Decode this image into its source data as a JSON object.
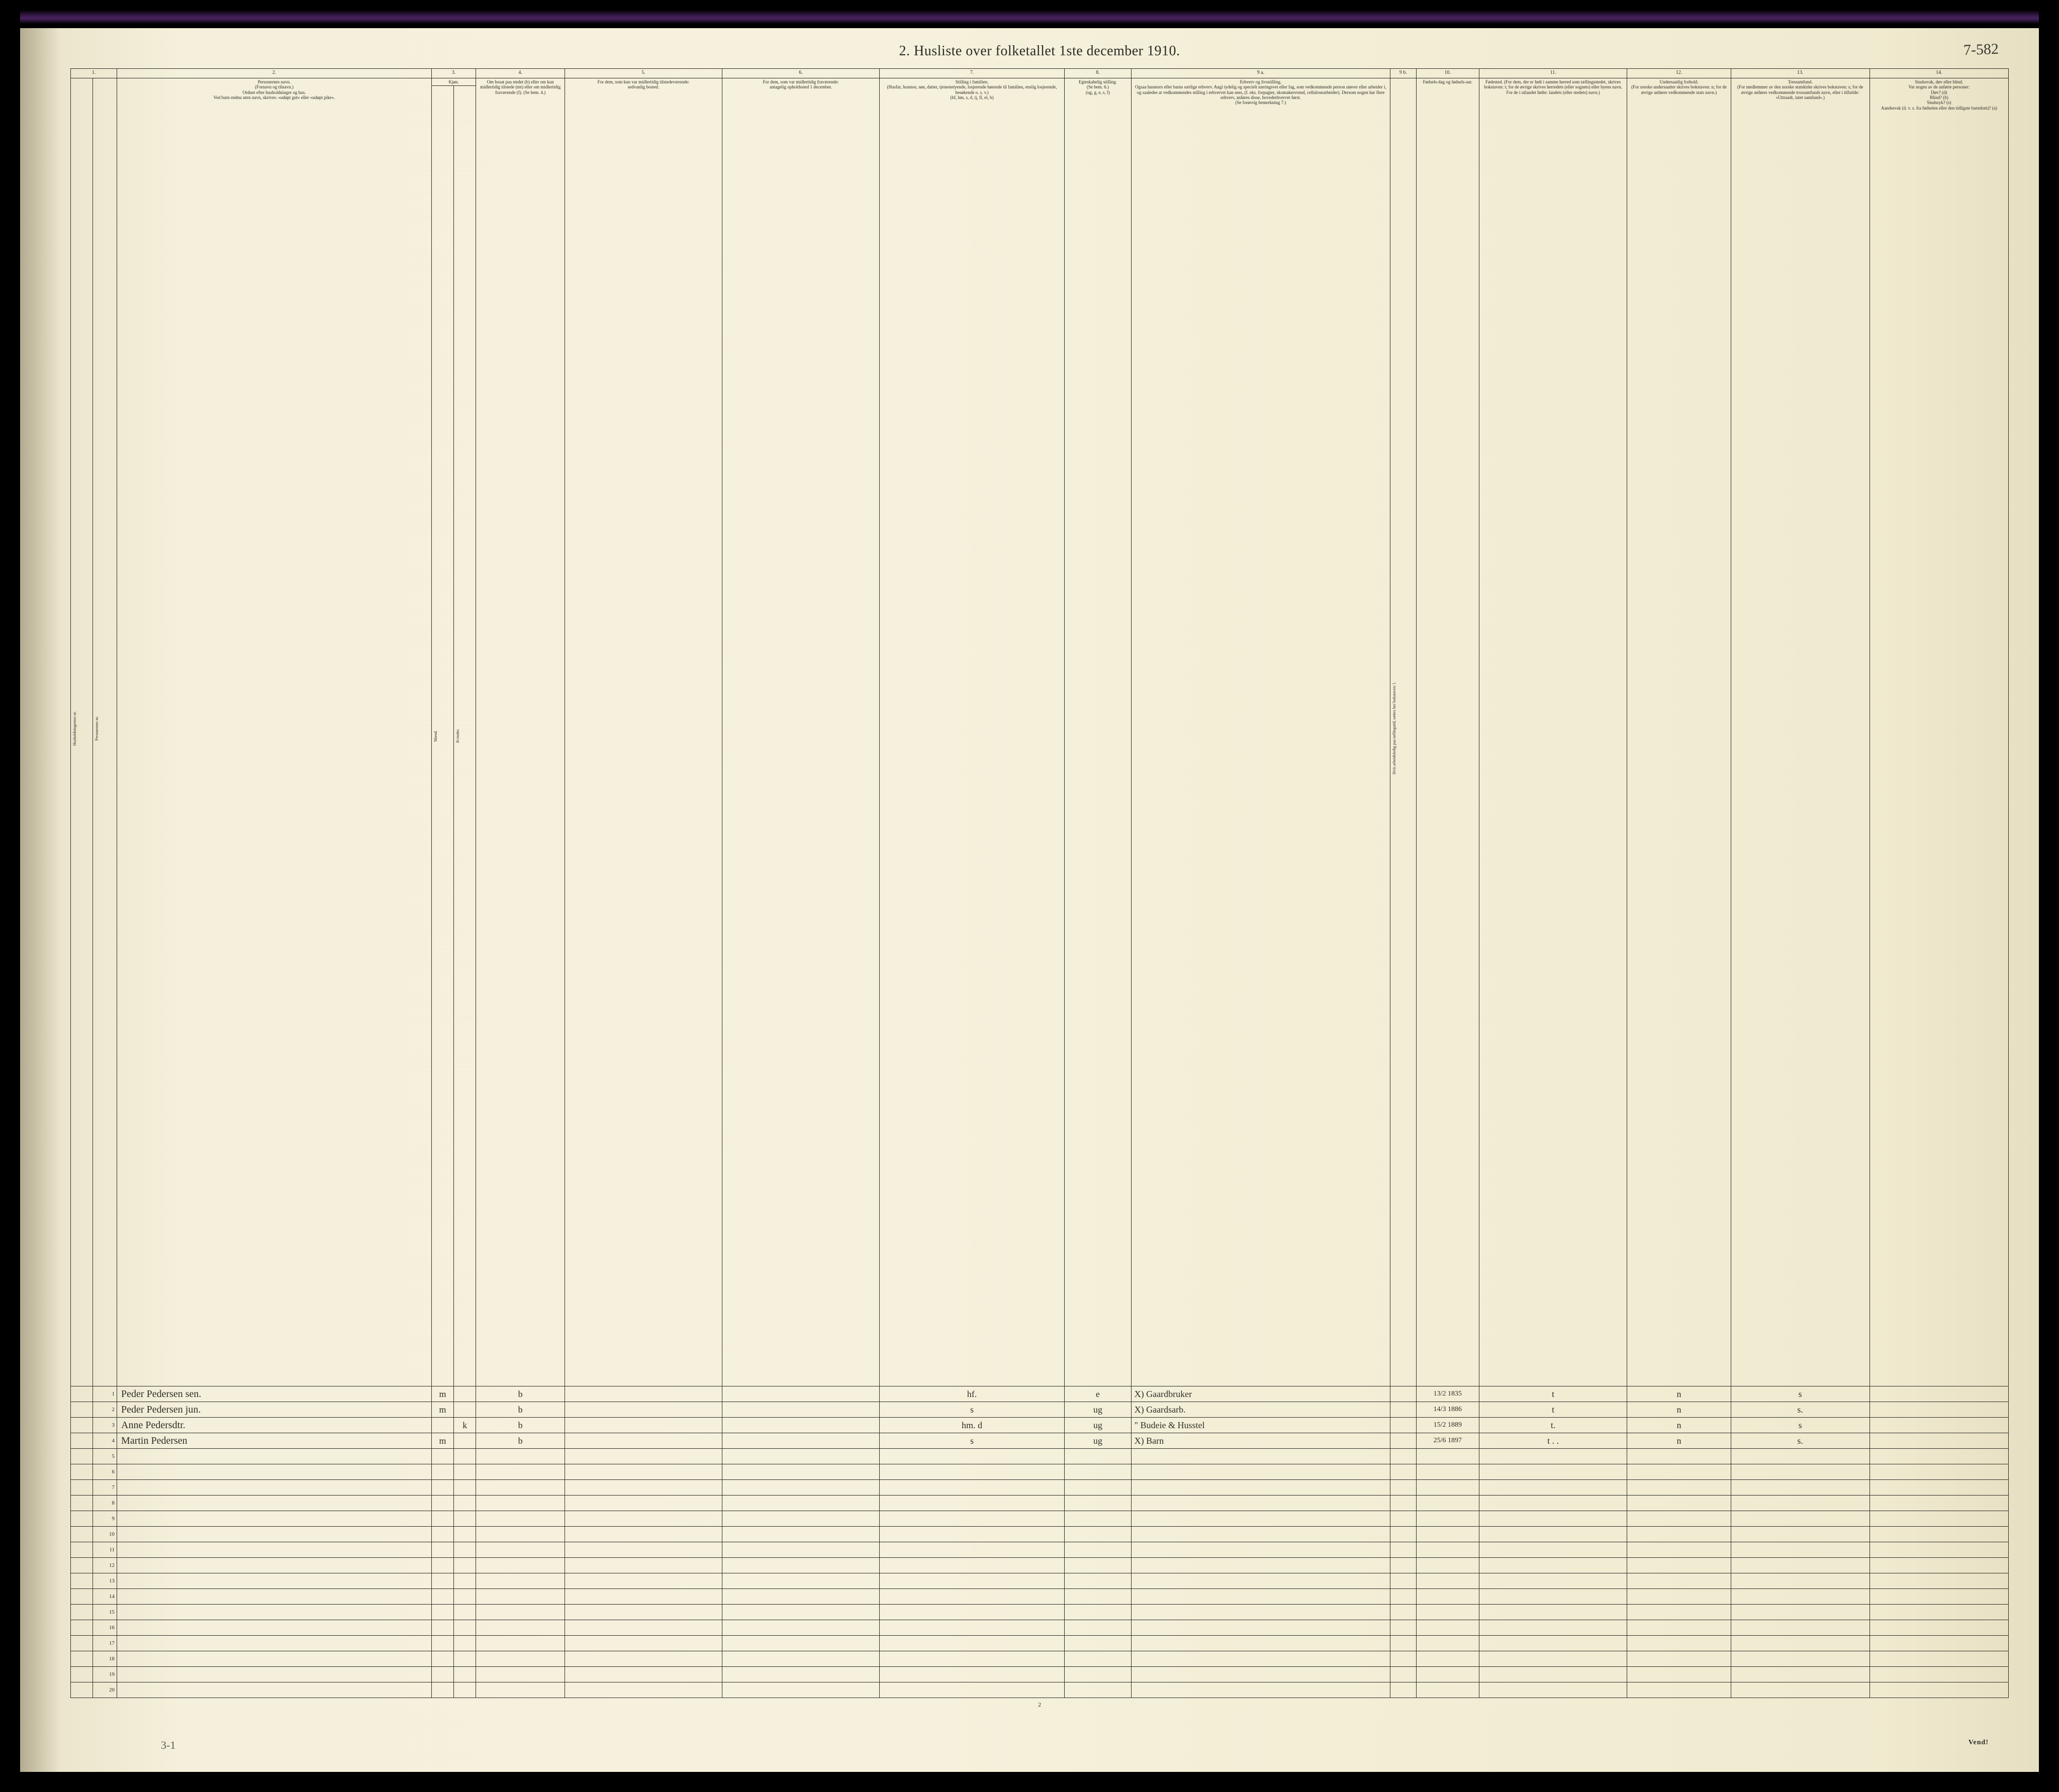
{
  "title": "2.  Husliste over folketallet 1ste december 1910.",
  "page_ref": "7-582",
  "footer_pagenum": "2",
  "footer_left": "3-1",
  "footer_right": "Vend!",
  "col_numbers": [
    "1.",
    "2.",
    "3.",
    "4.",
    "5.",
    "6.",
    "7.",
    "8.",
    "9 a.",
    "9 b.",
    "10.",
    "11.",
    "12.",
    "13.",
    "14."
  ],
  "headers": {
    "hhnum": "Husholdningernes nr.",
    "pnum": "Personernes nr.",
    "name": "Personernes navn.\n(Fornavn og tilnavn.)\nOrdnet efter husholdninger og hus.\nVed barn endnu uten navn, skrives: «udøpt gut» eller «udøpt pike».",
    "sex": "Kjøn.",
    "sex_m": "Mænd.",
    "sex_k": "Kvinder.",
    "col4": "Om bosat paa stedet (b) eller om kun midlertidig tilstede (mt) eller om midlertidig fraværende (f). (Se bem. 4.)",
    "col5": "For dem, som kun var midlertidig tilstedeværende:\nsedvanlig bosted.",
    "col6": "For dem, som var midlertidig fraværende:\nantagelig opholdssted 1 december.",
    "col7": "Stilling i familien.\n(Husfar, husmor, søn, datter, tjenestetyende, losjerende hørende til familien, enslig losjerende, besøkende o. s. v.)\n(hf, hm, s, d, tj, fl, el, b)",
    "col8": "Egteskabelig stilling.\n(Se bem. 6.)\n(ug, g, e, s, f)",
    "col9a": "Erhverv og livsstilling.\nOgsaa husmors eller barns særlige erhverv. Angi tydelig og specielt næringsvei eller fag, som vedkommende person utøver eller arbeider i, og saaledes at vedkommendes stilling i erhvervet kan sees, (f. eks. forpagter, skomakersvend, cellulosearbeider). Dersom nogen har flere erhverv, anføres disse, hovederhvervet først.\n(Se forøvrig bemerkning 7.)",
    "col9b": "Hvis arbeidsledig paa tællingstid, sættes her bokstaven: l.",
    "col10": "Fødsels-dag og fødsels-aar.",
    "col11": "Fødested.\n(For dem, der er født i samme herred som tællingsstedet, skrives bokstaven: t; for de øvrige skrives herredets (eller sognets) eller byens navn. For de i utlandet fødte: landets (eller stedets) navn.)",
    "col12": "Undersaatlig forhold.\n(For norske undersaatter skrives bokstaven: n; for de øvrige anføres vedkommende stats navn.)",
    "col13": "Tressamfund.\n(For medlemmer av den norske statskirke skrives bokstaven: s; for de øvrige anføres vedkommende trossamfunds navn, eller i tilfælde: «Uttraadt, intet samfund».)",
    "col14": "Sindssvak, døv eller blind.\nVar nogen av de anførte personer:\nDøv? (d)\nBlind? (b)\nSindssyk? (s)\nAandssvak (d. v. s. fra fødselen eller den tidligste barndom)? (a)"
  },
  "rows": [
    {
      "n": "1",
      "name": "Peder Pedersen sen.",
      "sex": "m",
      "b": "b",
      "fam": "hf.",
      "eg": "e",
      "erhv": "X) Gaardbruker",
      "dob": "13/2 1835",
      "fsted": "t",
      "nat": "n",
      "tro": "s"
    },
    {
      "n": "2",
      "name": "Peder Pedersen jun.",
      "sex": "m",
      "b": "b",
      "fam": "s",
      "eg": "ug",
      "erhv": "X) Gaardsarb.",
      "dob": "14/3 1886",
      "fsted": "t",
      "nat": "n",
      "tro": "s."
    },
    {
      "n": "3",
      "name": "Anne Pedersdtr.",
      "sex": "k",
      "b": "b",
      "fam": "hm. d",
      "eg": "ug",
      "erhv": "\" Budeie & Husstel",
      "dob": "15/2 1889",
      "fsted": "t.",
      "nat": "n",
      "tro": "s"
    },
    {
      "n": "4",
      "name": "Martin Pedersen",
      "sex": "m",
      "b": "b",
      "fam": "s",
      "eg": "ug",
      "erhv": "X) Barn",
      "dob": "25/6 1897",
      "fsted": "t . .",
      "nat": "n",
      "tro": "s."
    },
    {
      "n": "5"
    },
    {
      "n": "6"
    },
    {
      "n": "7"
    },
    {
      "n": "8"
    },
    {
      "n": "9"
    },
    {
      "n": "10"
    },
    {
      "n": "11"
    },
    {
      "n": "12"
    },
    {
      "n": "13"
    },
    {
      "n": "14"
    },
    {
      "n": "15"
    },
    {
      "n": "16"
    },
    {
      "n": "17"
    },
    {
      "n": "18"
    },
    {
      "n": "19"
    },
    {
      "n": "20"
    }
  ],
  "colors": {
    "paper": "#f3eed9",
    "ink": "#2a2a25",
    "hand": "#2f2e28",
    "scanner": "#000000"
  }
}
